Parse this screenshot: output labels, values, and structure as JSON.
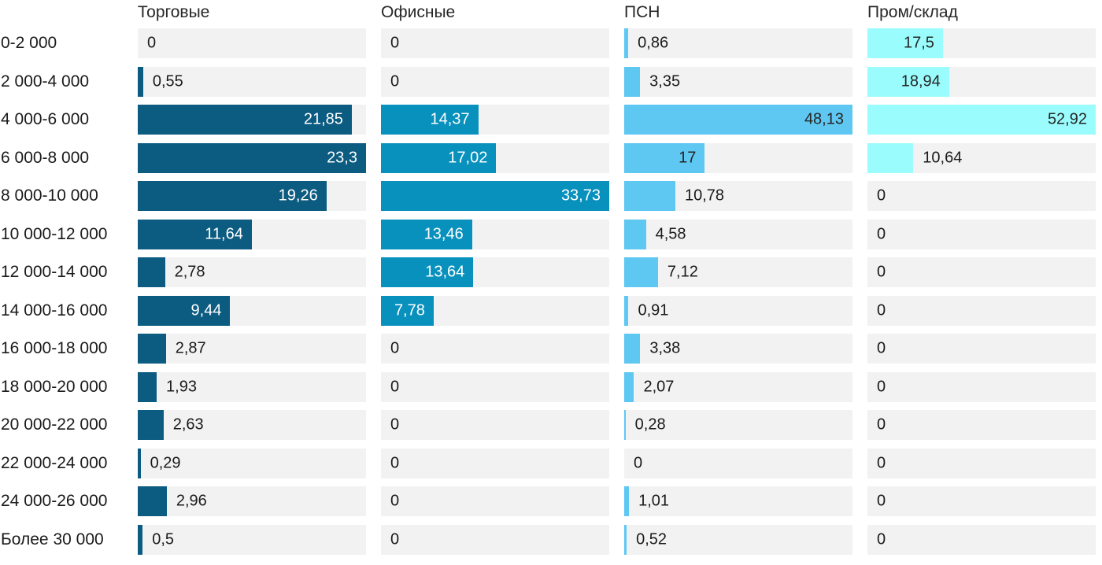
{
  "chart_data": {
    "type": "bar",
    "orientation": "horizontal",
    "layout": "small-multiples, one column per series, each column scaled to its own max, grid off, no axes, value labels on bars",
    "categories": [
      "0-2 000",
      "2 000-4 000",
      "4 000-6 000",
      "6 000-8 000",
      "8 000-10 000",
      "10 000-12 000",
      "12 000-14 000",
      "14 000-16 000",
      "16 000-18 000",
      "18 000-20 000",
      "20 000-22 000",
      "22 000-24 000",
      "24 000-26 000",
      "Более 30 000"
    ],
    "series": [
      {
        "name": "Торговые",
        "color": "#0c5b81",
        "inside_label_color": "#ffffff",
        "values": [
          0,
          0.55,
          21.85,
          23.3,
          19.26,
          11.64,
          2.78,
          9.44,
          2.87,
          1.93,
          2.63,
          0.29,
          2.96,
          0.5
        ],
        "labels": [
          "0",
          "0,55",
          "21,85",
          "23,3",
          "19,26",
          "11,64",
          "2,78",
          "9,44",
          "2,87",
          "1,93",
          "2,63",
          "0,29",
          "2,96",
          "0,5"
        ]
      },
      {
        "name": "Офисные",
        "color": "#0991bd",
        "inside_label_color": "#ffffff",
        "values": [
          0,
          0,
          14.37,
          17.02,
          33.73,
          13.46,
          13.64,
          7.78,
          0,
          0,
          0,
          0,
          0,
          0
        ],
        "labels": [
          "0",
          "0",
          "14,37",
          "17,02",
          "33,73",
          "13,46",
          "13,64",
          "7,78",
          "0",
          "0",
          "0",
          "0",
          "0",
          "0"
        ]
      },
      {
        "name": "ПСН",
        "color": "#5ec7f2",
        "inside_label_color": "#262626",
        "values": [
          0.86,
          3.35,
          48.13,
          17,
          10.78,
          4.58,
          7.12,
          0.91,
          3.38,
          2.07,
          0.28,
          0,
          1.01,
          0.52
        ],
        "labels": [
          "0,86",
          "3,35",
          "48,13",
          "17",
          "10,78",
          "4,58",
          "7,12",
          "0,91",
          "3,38",
          "2,07",
          "0,28",
          "0",
          "1,01",
          "0,52"
        ]
      },
      {
        "name": "Пром/склад",
        "color": "#9afcfc",
        "inside_label_color": "#262626",
        "values": [
          17.5,
          18.94,
          52.92,
          10.64,
          0,
          0,
          0,
          0,
          0,
          0,
          0,
          0,
          0,
          0
        ],
        "labels": [
          "17,5",
          "18,94",
          "52,92",
          "10,64",
          "0",
          "0",
          "0",
          "0",
          "0",
          "0",
          "0",
          "0",
          "0",
          "0"
        ]
      }
    ],
    "colors": {
      "track_background": "#f2f2f2",
      "header_text": "#262626",
      "category_text": "#1a1a1a",
      "outside_value_text": "#1a1a1a"
    }
  }
}
